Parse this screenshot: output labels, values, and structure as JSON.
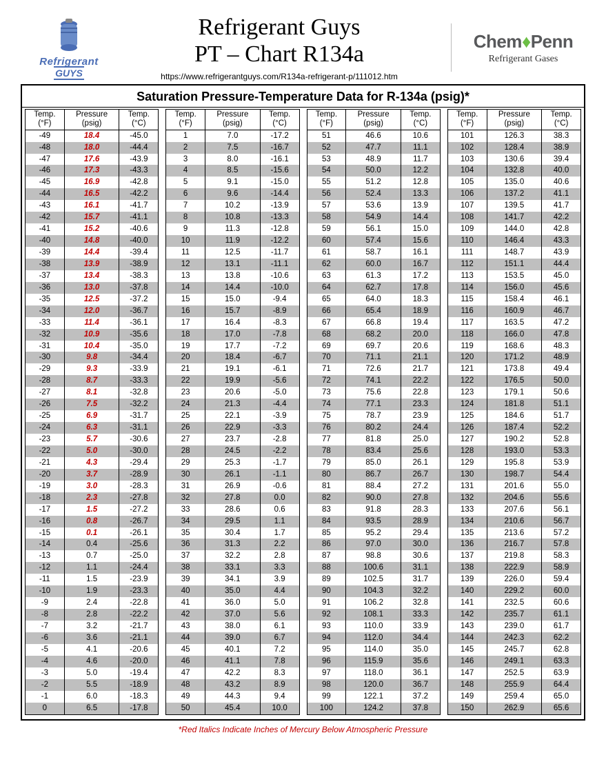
{
  "header": {
    "left_logo": {
      "line1": "Refrigerant",
      "line2": "GUYS"
    },
    "title_line1": "Refrigerant Guys",
    "title_line2": "PT – Chart R134a",
    "url": "https://www.refrigerantguys.com/R134a-refrigerant-p/111012.htm",
    "right_logo": {
      "brand_pre": "Chem",
      "brand_post": "Penn",
      "sub": "Refrigerant Gases"
    }
  },
  "table": {
    "title": "Saturation Pressure-Temperature Data for R-134a (psig)*",
    "col_headers": {
      "tf": "Temp.\n(°F)",
      "p": "Pressure\n(psig)",
      "tc": "Temp.\n(°C)"
    },
    "footnote": "*Red Italics Indicate Inches of Mercury Below Atmospheric Pressure",
    "colors": {
      "shade": "#bfbfbf",
      "vacuum_text": "#c00000",
      "border": "#000000"
    },
    "columns": [
      [
        {
          "tf": -49,
          "p": "18.4",
          "tc": "-45.0",
          "v": true
        },
        {
          "tf": -48,
          "p": "18.0",
          "tc": "-44.4",
          "v": true
        },
        {
          "tf": -47,
          "p": "17.6",
          "tc": "-43.9",
          "v": true
        },
        {
          "tf": -46,
          "p": "17.3",
          "tc": "-43.3",
          "v": true
        },
        {
          "tf": -45,
          "p": "16.9",
          "tc": "-42.8",
          "v": true
        },
        {
          "tf": -44,
          "p": "16.5",
          "tc": "-42.2",
          "v": true
        },
        {
          "tf": -43,
          "p": "16.1",
          "tc": "-41.7",
          "v": true
        },
        {
          "tf": -42,
          "p": "15.7",
          "tc": "-41.1",
          "v": true
        },
        {
          "tf": -41,
          "p": "15.2",
          "tc": "-40.6",
          "v": true
        },
        {
          "tf": -40,
          "p": "14.8",
          "tc": "-40.0",
          "v": true
        },
        {
          "tf": -39,
          "p": "14.4",
          "tc": "-39.4",
          "v": true
        },
        {
          "tf": -38,
          "p": "13.9",
          "tc": "-38.9",
          "v": true
        },
        {
          "tf": -37,
          "p": "13.4",
          "tc": "-38.3",
          "v": true
        },
        {
          "tf": -36,
          "p": "13.0",
          "tc": "-37.8",
          "v": true
        },
        {
          "tf": -35,
          "p": "12.5",
          "tc": "-37.2",
          "v": true
        },
        {
          "tf": -34,
          "p": "12.0",
          "tc": "-36.7",
          "v": true
        },
        {
          "tf": -33,
          "p": "11.4",
          "tc": "-36.1",
          "v": true
        },
        {
          "tf": -32,
          "p": "10.9",
          "tc": "-35.6",
          "v": true
        },
        {
          "tf": -31,
          "p": "10.4",
          "tc": "-35.0",
          "v": true
        },
        {
          "tf": -30,
          "p": "9.8",
          "tc": "-34.4",
          "v": true
        },
        {
          "tf": -29,
          "p": "9.3",
          "tc": "-33.9",
          "v": true
        },
        {
          "tf": -28,
          "p": "8.7",
          "tc": "-33.3",
          "v": true
        },
        {
          "tf": -27,
          "p": "8.1",
          "tc": "-32.8",
          "v": true
        },
        {
          "tf": -26,
          "p": "7.5",
          "tc": "-32.2",
          "v": true
        },
        {
          "tf": -25,
          "p": "6.9",
          "tc": "-31.7",
          "v": true
        },
        {
          "tf": -24,
          "p": "6.3",
          "tc": "-31.1",
          "v": true
        },
        {
          "tf": -23,
          "p": "5.7",
          "tc": "-30.6",
          "v": true
        },
        {
          "tf": -22,
          "p": "5.0",
          "tc": "-30.0",
          "v": true
        },
        {
          "tf": -21,
          "p": "4.3",
          "tc": "-29.4",
          "v": true
        },
        {
          "tf": -20,
          "p": "3.7",
          "tc": "-28.9",
          "v": true
        },
        {
          "tf": -19,
          "p": "3.0",
          "tc": "-28.3",
          "v": true
        },
        {
          "tf": -18,
          "p": "2.3",
          "tc": "-27.8",
          "v": true
        },
        {
          "tf": -17,
          "p": "1.5",
          "tc": "-27.2",
          "v": true
        },
        {
          "tf": -16,
          "p": "0.8",
          "tc": "-26.7",
          "v": true
        },
        {
          "tf": -15,
          "p": "0.1",
          "tc": "-26.1",
          "v": true
        },
        {
          "tf": -14,
          "p": "0.4",
          "tc": "-25.6"
        },
        {
          "tf": -13,
          "p": "0.7",
          "tc": "-25.0"
        },
        {
          "tf": -12,
          "p": "1.1",
          "tc": "-24.4"
        },
        {
          "tf": -11,
          "p": "1.5",
          "tc": "-23.9"
        },
        {
          "tf": -10,
          "p": "1.9",
          "tc": "-23.3"
        },
        {
          "tf": -9,
          "p": "2.4",
          "tc": "-22.8"
        },
        {
          "tf": -8,
          "p": "2.8",
          "tc": "-22.2"
        },
        {
          "tf": -7,
          "p": "3.2",
          "tc": "-21.7"
        },
        {
          "tf": -6,
          "p": "3.6",
          "tc": "-21.1"
        },
        {
          "tf": -5,
          "p": "4.1",
          "tc": "-20.6"
        },
        {
          "tf": -4,
          "p": "4.6",
          "tc": "-20.0"
        },
        {
          "tf": -3,
          "p": "5.0",
          "tc": "-19.4"
        },
        {
          "tf": -2,
          "p": "5.5",
          "tc": "-18.9"
        },
        {
          "tf": -1,
          "p": "6.0",
          "tc": "-18.3"
        },
        {
          "tf": 0,
          "p": "6.5",
          "tc": "-17.8"
        }
      ],
      [
        {
          "tf": 1,
          "p": "7.0",
          "tc": "-17.2"
        },
        {
          "tf": 2,
          "p": "7.5",
          "tc": "-16.7"
        },
        {
          "tf": 3,
          "p": "8.0",
          "tc": "-16.1"
        },
        {
          "tf": 4,
          "p": "8.5",
          "tc": "-15.6"
        },
        {
          "tf": 5,
          "p": "9.1",
          "tc": "-15.0"
        },
        {
          "tf": 6,
          "p": "9.6",
          "tc": "-14.4"
        },
        {
          "tf": 7,
          "p": "10.2",
          "tc": "-13.9"
        },
        {
          "tf": 8,
          "p": "10.8",
          "tc": "-13.3"
        },
        {
          "tf": 9,
          "p": "11.3",
          "tc": "-12.8"
        },
        {
          "tf": 10,
          "p": "11.9",
          "tc": "-12.2"
        },
        {
          "tf": 11,
          "p": "12.5",
          "tc": "-11.7"
        },
        {
          "tf": 12,
          "p": "13.1",
          "tc": "-11.1"
        },
        {
          "tf": 13,
          "p": "13.8",
          "tc": "-10.6"
        },
        {
          "tf": 14,
          "p": "14.4",
          "tc": "-10.0"
        },
        {
          "tf": 15,
          "p": "15.0",
          "tc": "-9.4"
        },
        {
          "tf": 16,
          "p": "15.7",
          "tc": "-8.9"
        },
        {
          "tf": 17,
          "p": "16.4",
          "tc": "-8.3"
        },
        {
          "tf": 18,
          "p": "17.0",
          "tc": "-7.8"
        },
        {
          "tf": 19,
          "p": "17.7",
          "tc": "-7.2"
        },
        {
          "tf": 20,
          "p": "18.4",
          "tc": "-6.7"
        },
        {
          "tf": 21,
          "p": "19.1",
          "tc": "-6.1"
        },
        {
          "tf": 22,
          "p": "19.9",
          "tc": "-5.6"
        },
        {
          "tf": 23,
          "p": "20.6",
          "tc": "-5.0"
        },
        {
          "tf": 24,
          "p": "21.3",
          "tc": "-4.4"
        },
        {
          "tf": 25,
          "p": "22.1",
          "tc": "-3.9"
        },
        {
          "tf": 26,
          "p": "22.9",
          "tc": "-3.3"
        },
        {
          "tf": 27,
          "p": "23.7",
          "tc": "-2.8"
        },
        {
          "tf": 28,
          "p": "24.5",
          "tc": "-2.2"
        },
        {
          "tf": 29,
          "p": "25.3",
          "tc": "-1.7"
        },
        {
          "tf": 30,
          "p": "26.1",
          "tc": "-1.1"
        },
        {
          "tf": 31,
          "p": "26.9",
          "tc": "-0.6"
        },
        {
          "tf": 32,
          "p": "27.8",
          "tc": "0.0"
        },
        {
          "tf": 33,
          "p": "28.6",
          "tc": "0.6"
        },
        {
          "tf": 34,
          "p": "29.5",
          "tc": "1.1"
        },
        {
          "tf": 35,
          "p": "30.4",
          "tc": "1.7"
        },
        {
          "tf": 36,
          "p": "31.3",
          "tc": "2.2"
        },
        {
          "tf": 37,
          "p": "32.2",
          "tc": "2.8"
        },
        {
          "tf": 38,
          "p": "33.1",
          "tc": "3.3"
        },
        {
          "tf": 39,
          "p": "34.1",
          "tc": "3.9"
        },
        {
          "tf": 40,
          "p": "35.0",
          "tc": "4.4"
        },
        {
          "tf": 41,
          "p": "36.0",
          "tc": "5.0"
        },
        {
          "tf": 42,
          "p": "37.0",
          "tc": "5.6"
        },
        {
          "tf": 43,
          "p": "38.0",
          "tc": "6.1"
        },
        {
          "tf": 44,
          "p": "39.0",
          "tc": "6.7"
        },
        {
          "tf": 45,
          "p": "40.1",
          "tc": "7.2"
        },
        {
          "tf": 46,
          "p": "41.1",
          "tc": "7.8"
        },
        {
          "tf": 47,
          "p": "42.2",
          "tc": "8.3"
        },
        {
          "tf": 48,
          "p": "43.2",
          "tc": "8.9"
        },
        {
          "tf": 49,
          "p": "44.3",
          "tc": "9.4"
        },
        {
          "tf": 50,
          "p": "45.4",
          "tc": "10.0"
        }
      ],
      [
        {
          "tf": 51,
          "p": "46.6",
          "tc": "10.6"
        },
        {
          "tf": 52,
          "p": "47.7",
          "tc": "11.1"
        },
        {
          "tf": 53,
          "p": "48.9",
          "tc": "11.7"
        },
        {
          "tf": 54,
          "p": "50.0",
          "tc": "12.2"
        },
        {
          "tf": 55,
          "p": "51.2",
          "tc": "12.8"
        },
        {
          "tf": 56,
          "p": "52.4",
          "tc": "13.3"
        },
        {
          "tf": 57,
          "p": "53.6",
          "tc": "13.9"
        },
        {
          "tf": 58,
          "p": "54.9",
          "tc": "14.4"
        },
        {
          "tf": 59,
          "p": "56.1",
          "tc": "15.0"
        },
        {
          "tf": 60,
          "p": "57.4",
          "tc": "15.6"
        },
        {
          "tf": 61,
          "p": "58.7",
          "tc": "16.1"
        },
        {
          "tf": 62,
          "p": "60.0",
          "tc": "16.7"
        },
        {
          "tf": 63,
          "p": "61.3",
          "tc": "17.2"
        },
        {
          "tf": 64,
          "p": "62.7",
          "tc": "17.8"
        },
        {
          "tf": 65,
          "p": "64.0",
          "tc": "18.3"
        },
        {
          "tf": 66,
          "p": "65.4",
          "tc": "18.9"
        },
        {
          "tf": 67,
          "p": "66.8",
          "tc": "19.4"
        },
        {
          "tf": 68,
          "p": "68.2",
          "tc": "20.0"
        },
        {
          "tf": 69,
          "p": "69.7",
          "tc": "20.6"
        },
        {
          "tf": 70,
          "p": "71.1",
          "tc": "21.1"
        },
        {
          "tf": 71,
          "p": "72.6",
          "tc": "21.7"
        },
        {
          "tf": 72,
          "p": "74.1",
          "tc": "22.2"
        },
        {
          "tf": 73,
          "p": "75.6",
          "tc": "22.8"
        },
        {
          "tf": 74,
          "p": "77.1",
          "tc": "23.3"
        },
        {
          "tf": 75,
          "p": "78.7",
          "tc": "23.9"
        },
        {
          "tf": 76,
          "p": "80.2",
          "tc": "24.4"
        },
        {
          "tf": 77,
          "p": "81.8",
          "tc": "25.0"
        },
        {
          "tf": 78,
          "p": "83.4",
          "tc": "25.6"
        },
        {
          "tf": 79,
          "p": "85.0",
          "tc": "26.1"
        },
        {
          "tf": 80,
          "p": "86.7",
          "tc": "26.7"
        },
        {
          "tf": 81,
          "p": "88.4",
          "tc": "27.2"
        },
        {
          "tf": 82,
          "p": "90.0",
          "tc": "27.8"
        },
        {
          "tf": 83,
          "p": "91.8",
          "tc": "28.3"
        },
        {
          "tf": 84,
          "p": "93.5",
          "tc": "28.9"
        },
        {
          "tf": 85,
          "p": "95.2",
          "tc": "29.4"
        },
        {
          "tf": 86,
          "p": "97.0",
          "tc": "30.0"
        },
        {
          "tf": 87,
          "p": "98.8",
          "tc": "30.6"
        },
        {
          "tf": 88,
          "p": "100.6",
          "tc": "31.1"
        },
        {
          "tf": 89,
          "p": "102.5",
          "tc": "31.7"
        },
        {
          "tf": 90,
          "p": "104.3",
          "tc": "32.2"
        },
        {
          "tf": 91,
          "p": "106.2",
          "tc": "32.8"
        },
        {
          "tf": 92,
          "p": "108.1",
          "tc": "33.3"
        },
        {
          "tf": 93,
          "p": "110.0",
          "tc": "33.9"
        },
        {
          "tf": 94,
          "p": "112.0",
          "tc": "34.4"
        },
        {
          "tf": 95,
          "p": "114.0",
          "tc": "35.0"
        },
        {
          "tf": 96,
          "p": "115.9",
          "tc": "35.6"
        },
        {
          "tf": 97,
          "p": "118.0",
          "tc": "36.1"
        },
        {
          "tf": 98,
          "p": "120.0",
          "tc": "36.7"
        },
        {
          "tf": 99,
          "p": "122.1",
          "tc": "37.2"
        },
        {
          "tf": 100,
          "p": "124.2",
          "tc": "37.8"
        }
      ],
      [
        {
          "tf": 101,
          "p": "126.3",
          "tc": "38.3"
        },
        {
          "tf": 102,
          "p": "128.4",
          "tc": "38.9"
        },
        {
          "tf": 103,
          "p": "130.6",
          "tc": "39.4"
        },
        {
          "tf": 104,
          "p": "132.8",
          "tc": "40.0"
        },
        {
          "tf": 105,
          "p": "135.0",
          "tc": "40.6"
        },
        {
          "tf": 106,
          "p": "137.2",
          "tc": "41.1"
        },
        {
          "tf": 107,
          "p": "139.5",
          "tc": "41.7"
        },
        {
          "tf": 108,
          "p": "141.7",
          "tc": "42.2"
        },
        {
          "tf": 109,
          "p": "144.0",
          "tc": "42.8"
        },
        {
          "tf": 110,
          "p": "146.4",
          "tc": "43.3"
        },
        {
          "tf": 111,
          "p": "148.7",
          "tc": "43.9"
        },
        {
          "tf": 112,
          "p": "151.1",
          "tc": "44.4"
        },
        {
          "tf": 113,
          "p": "153.5",
          "tc": "45.0"
        },
        {
          "tf": 114,
          "p": "156.0",
          "tc": "45.6"
        },
        {
          "tf": 115,
          "p": "158.4",
          "tc": "46.1"
        },
        {
          "tf": 116,
          "p": "160.9",
          "tc": "46.7"
        },
        {
          "tf": 117,
          "p": "163.5",
          "tc": "47.2"
        },
        {
          "tf": 118,
          "p": "166.0",
          "tc": "47.8"
        },
        {
          "tf": 119,
          "p": "168.6",
          "tc": "48.3"
        },
        {
          "tf": 120,
          "p": "171.2",
          "tc": "48.9"
        },
        {
          "tf": 121,
          "p": "173.8",
          "tc": "49.4"
        },
        {
          "tf": 122,
          "p": "176.5",
          "tc": "50.0"
        },
        {
          "tf": 123,
          "p": "179.1",
          "tc": "50.6"
        },
        {
          "tf": 124,
          "p": "181.8",
          "tc": "51.1"
        },
        {
          "tf": 125,
          "p": "184.6",
          "tc": "51.7"
        },
        {
          "tf": 126,
          "p": "187.4",
          "tc": "52.2"
        },
        {
          "tf": 127,
          "p": "190.2",
          "tc": "52.8"
        },
        {
          "tf": 128,
          "p": "193.0",
          "tc": "53.3"
        },
        {
          "tf": 129,
          "p": "195.8",
          "tc": "53.9"
        },
        {
          "tf": 130,
          "p": "198.7",
          "tc": "54.4"
        },
        {
          "tf": 131,
          "p": "201.6",
          "tc": "55.0"
        },
        {
          "tf": 132,
          "p": "204.6",
          "tc": "55.6"
        },
        {
          "tf": 133,
          "p": "207.6",
          "tc": "56.1"
        },
        {
          "tf": 134,
          "p": "210.6",
          "tc": "56.7"
        },
        {
          "tf": 135,
          "p": "213.6",
          "tc": "57.2"
        },
        {
          "tf": 136,
          "p": "216.7",
          "tc": "57.8"
        },
        {
          "tf": 137,
          "p": "219.8",
          "tc": "58.3"
        },
        {
          "tf": 138,
          "p": "222.9",
          "tc": "58.9"
        },
        {
          "tf": 139,
          "p": "226.0",
          "tc": "59.4"
        },
        {
          "tf": 140,
          "p": "229.2",
          "tc": "60.0"
        },
        {
          "tf": 141,
          "p": "232.5",
          "tc": "60.6"
        },
        {
          "tf": 142,
          "p": "235.7",
          "tc": "61.1"
        },
        {
          "tf": 143,
          "p": "239.0",
          "tc": "61.7"
        },
        {
          "tf": 144,
          "p": "242.3",
          "tc": "62.2"
        },
        {
          "tf": 145,
          "p": "245.7",
          "tc": "62.8"
        },
        {
          "tf": 146,
          "p": "249.1",
          "tc": "63.3"
        },
        {
          "tf": 147,
          "p": "252.5",
          "tc": "63.9"
        },
        {
          "tf": 148,
          "p": "255.9",
          "tc": "64.4"
        },
        {
          "tf": 149,
          "p": "259.4",
          "tc": "65.0"
        },
        {
          "tf": 150,
          "p": "262.9",
          "tc": "65.6"
        }
      ]
    ]
  }
}
